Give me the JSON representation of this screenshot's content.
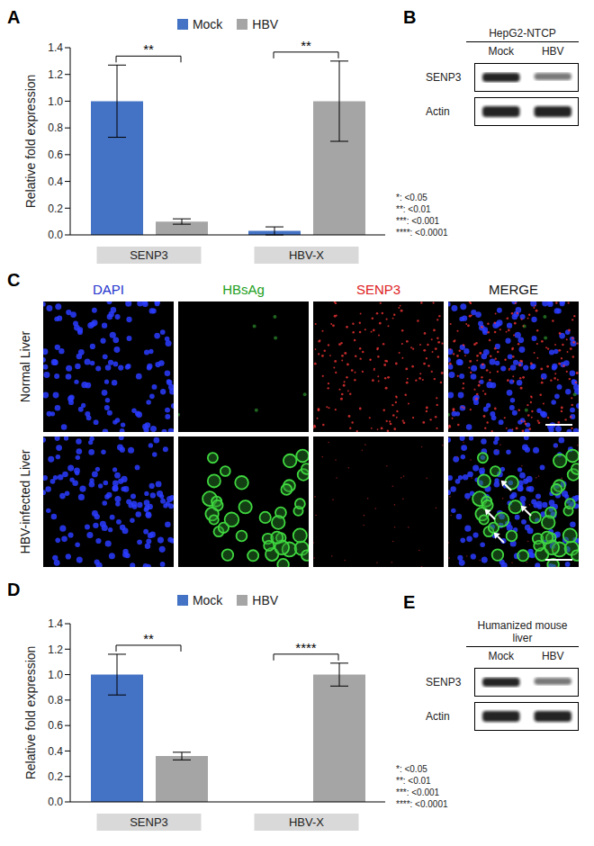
{
  "chart_data": [
    {
      "type": "bar",
      "panel_label": "A",
      "ylabel": "Relative fold expression",
      "categories": [
        "SENP3",
        "HBV-X"
      ],
      "series": [
        {
          "name": "Mock",
          "color": "#4472c4",
          "values": [
            1.0,
            0.03
          ],
          "errors": [
            0.27,
            0.03
          ]
        },
        {
          "name": "HBV",
          "color": "#a5a5a5",
          "values": [
            0.1,
            1.0
          ],
          "errors": [
            0.02,
            0.3
          ]
        }
      ],
      "ylim": [
        0,
        1.4
      ],
      "yticks": [
        {
          "value": 0,
          "label": "0.0"
        },
        0.2,
        0.4,
        0.6,
        0.8,
        {
          "value": 1,
          "label": "1.0"
        },
        1.2,
        1.4
      ],
      "annotations": [
        {
          "category": "SENP3",
          "text": "**"
        },
        {
          "category": "HBV-X",
          "text": "**"
        }
      ],
      "significance_legend": [
        "*: <0.05",
        "**: <0.01",
        "***: <0.001",
        "****: <0.0001"
      ]
    },
    {
      "type": "bar",
      "panel_label": "D",
      "ylabel": "Relative fold expression",
      "categories": [
        "SENP3",
        "HBV-X"
      ],
      "series": [
        {
          "name": "Mock",
          "color": "#4472c4",
          "values": [
            1.0,
            0.0
          ],
          "errors": [
            0.16,
            0.0
          ]
        },
        {
          "name": "HBV",
          "color": "#a5a5a5",
          "values": [
            0.36,
            1.0
          ],
          "errors": [
            0.03,
            0.09
          ]
        }
      ],
      "ylim": [
        0,
        1.4
      ],
      "yticks": [
        {
          "value": 0,
          "label": "0.0"
        },
        0.2,
        0.4,
        0.6,
        0.8,
        {
          "value": 1,
          "label": "1.0"
        },
        1.2,
        1.4
      ],
      "annotations": [
        {
          "category": "SENP3",
          "text": "**"
        },
        {
          "category": "HBV-X",
          "text": "****"
        }
      ],
      "significance_legend": [
        "*: <0.05",
        "**: <0.01",
        "***: <0.001",
        "****: <0.0001"
      ]
    }
  ],
  "blots": [
    {
      "panel_label": "B",
      "header": "HepG2-NTCP",
      "lanes": [
        "Mock",
        "HBV"
      ],
      "rows": [
        "SENP3",
        "Actin"
      ]
    },
    {
      "panel_label": "E",
      "header": "Humanized mouse liver",
      "lanes": [
        "Mock",
        "HBV"
      ],
      "rows": [
        "SENP3",
        "Actin"
      ]
    }
  ],
  "images": {
    "panel_label": "C",
    "columns": [
      "DAPI",
      "HBsAg",
      "SENP3",
      "MERGE"
    ],
    "rows": [
      "Normal Liver",
      "HBV-infected Liver"
    ]
  }
}
